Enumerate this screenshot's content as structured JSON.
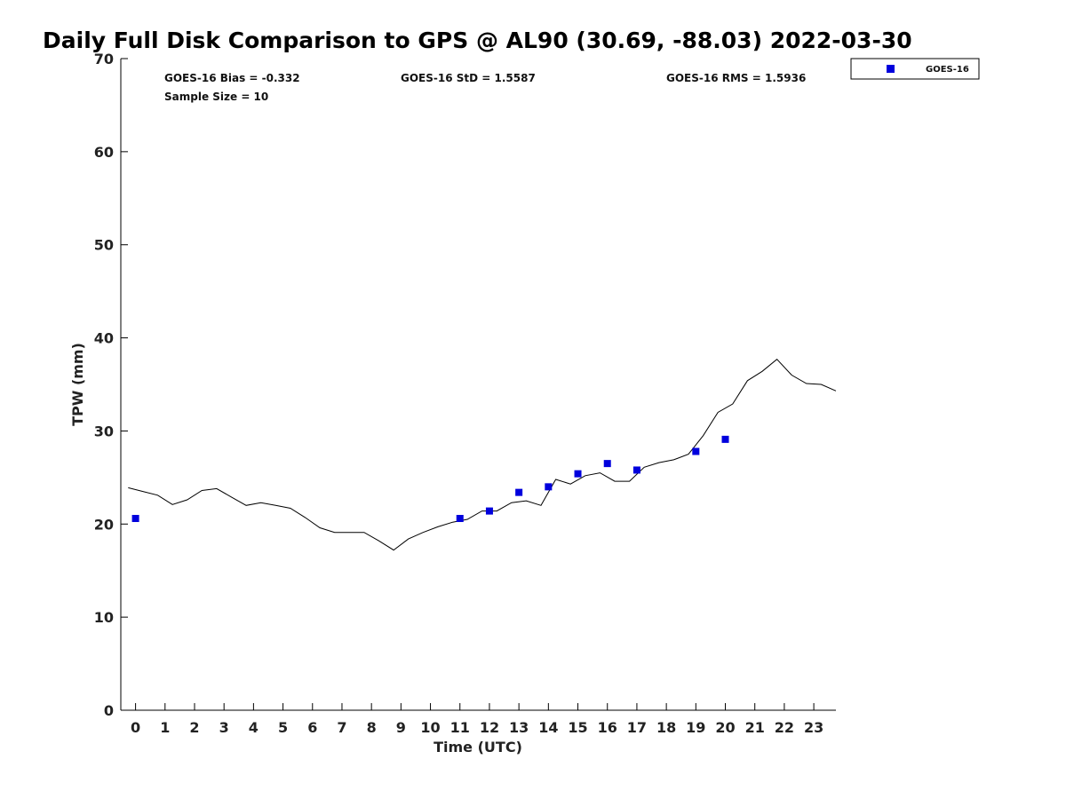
{
  "chart_data": {
    "type": "scatter",
    "title": "Daily Full Disk Comparison to GPS @ AL90 (30.69, -88.03) 2022-03-30",
    "xlabel": "Time (UTC)",
    "ylabel": "TPW (mm)",
    "xlim": [
      -0.5,
      23.75
    ],
    "ylim": [
      0,
      70
    ],
    "x_ticks": [
      0,
      1,
      2,
      3,
      4,
      5,
      6,
      7,
      8,
      9,
      10,
      11,
      12,
      13,
      14,
      15,
      16,
      17,
      18,
      19,
      20,
      21,
      22,
      23
    ],
    "y_ticks": [
      0,
      10,
      20,
      30,
      40,
      50,
      60,
      70
    ],
    "grid": false,
    "legend_position": "top-right, outside plot",
    "stats": {
      "bias": "GOES-16 Bias = -0.332",
      "std": "GOES-16 StD = 1.5587",
      "rms": "GOES-16 RMS = 1.5936",
      "sample_size": "Sample Size = 10"
    },
    "series": [
      {
        "name": "GOES-16",
        "kind": "scatter",
        "marker": "square",
        "color": "#0000dd",
        "points": [
          [
            0,
            20.6
          ],
          [
            11,
            20.6
          ],
          [
            12,
            21.4
          ],
          [
            13,
            23.4
          ],
          [
            14,
            24.0
          ],
          [
            15,
            25.4
          ],
          [
            16,
            26.5
          ],
          [
            17,
            25.8
          ],
          [
            19,
            27.8
          ],
          [
            20,
            29.1
          ]
        ]
      },
      {
        "kind": "line",
        "color": "#000000",
        "points": [
          [
            -0.25,
            23.9
          ],
          [
            0.25,
            23.5
          ],
          [
            0.75,
            23.1
          ],
          [
            1.25,
            22.1
          ],
          [
            1.75,
            22.6
          ],
          [
            2.25,
            23.6
          ],
          [
            2.75,
            23.8
          ],
          [
            3.25,
            22.9
          ],
          [
            3.75,
            22.0
          ],
          [
            4.25,
            22.3
          ],
          [
            4.75,
            22.0
          ],
          [
            5.25,
            21.7
          ],
          [
            5.75,
            20.7
          ],
          [
            6.25,
            19.6
          ],
          [
            6.75,
            19.1
          ],
          [
            7.25,
            19.1
          ],
          [
            7.75,
            19.1
          ],
          [
            8.25,
            18.2
          ],
          [
            8.75,
            17.2
          ],
          [
            9.25,
            18.4
          ],
          [
            9.75,
            19.1
          ],
          [
            10.25,
            19.7
          ],
          [
            10.75,
            20.2
          ],
          [
            11.25,
            20.5
          ],
          [
            11.75,
            21.4
          ],
          [
            12.25,
            21.4
          ],
          [
            12.75,
            22.3
          ],
          [
            13.25,
            22.5
          ],
          [
            13.75,
            22.0
          ],
          [
            14.25,
            24.8
          ],
          [
            14.75,
            24.3
          ],
          [
            15.25,
            25.2
          ],
          [
            15.75,
            25.5
          ],
          [
            16.25,
            24.6
          ],
          [
            16.75,
            24.6
          ],
          [
            17.25,
            26.1
          ],
          [
            17.75,
            26.6
          ],
          [
            18.25,
            26.9
          ],
          [
            18.75,
            27.5
          ],
          [
            19.25,
            29.5
          ],
          [
            19.75,
            32.0
          ],
          [
            20.25,
            32.9
          ],
          [
            20.75,
            35.4
          ],
          [
            21.25,
            36.4
          ],
          [
            21.75,
            37.7
          ],
          [
            22.25,
            36.0
          ],
          [
            22.75,
            35.1
          ],
          [
            23.25,
            35.0
          ],
          [
            23.75,
            34.3
          ]
        ]
      }
    ]
  }
}
